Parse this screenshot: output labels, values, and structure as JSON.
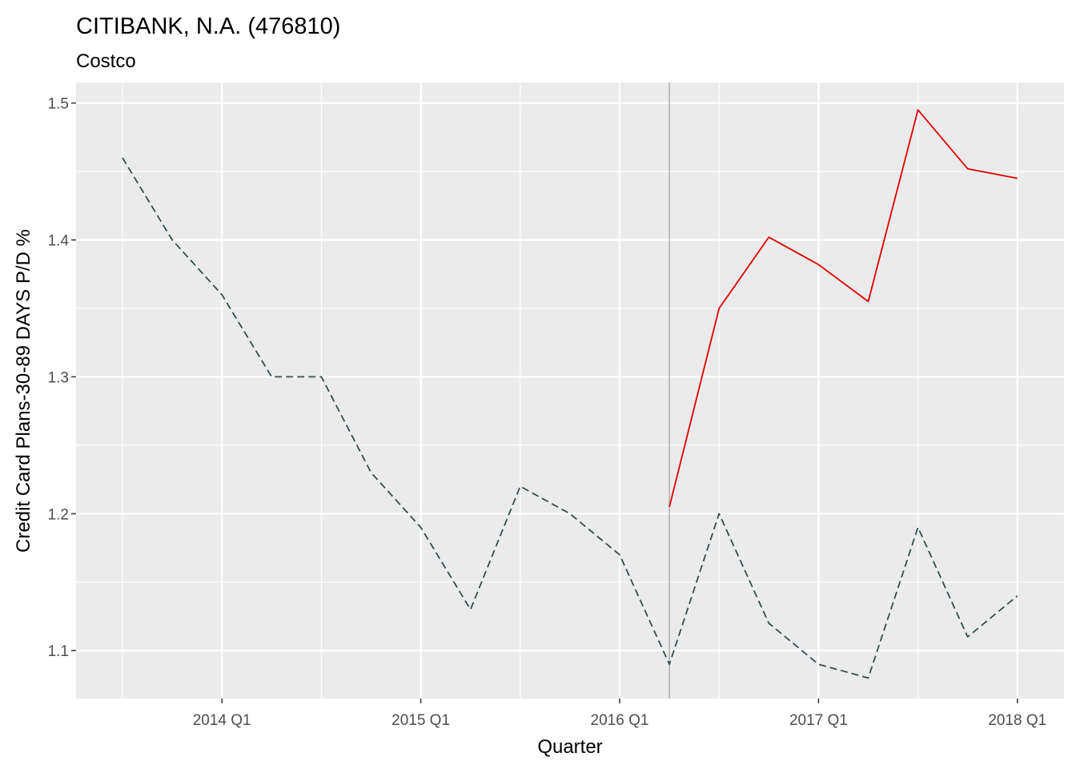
{
  "chart_data": {
    "type": "line",
    "title": "CITIBANK, N.A. (476810)",
    "subtitle": "Costco",
    "xlabel": "Quarter",
    "ylabel": "Credit Card Plans-30-89 DAYS P/D %",
    "x_ticks": [
      "2014 Q1",
      "2015 Q1",
      "2016 Q1",
      "2017 Q1",
      "2018 Q1"
    ],
    "y_ticks": [
      1.1,
      1.2,
      1.3,
      1.4,
      1.5
    ],
    "ylim": [
      1.065,
      1.515
    ],
    "xlim": [
      "2013 Q3",
      "2018 Q1"
    ],
    "grid": true,
    "legend": "none",
    "reference_line_x": "2016 Q2",
    "series": [
      {
        "style": "dashed",
        "color": "#2F4F4F",
        "x": [
          "2013 Q3",
          "2013 Q4",
          "2014 Q1",
          "2014 Q2",
          "2014 Q3",
          "2014 Q4",
          "2015 Q1",
          "2015 Q2",
          "2015 Q3",
          "2015 Q4",
          "2016 Q1",
          "2016 Q2",
          "2016 Q3",
          "2016 Q4",
          "2017 Q1",
          "2017 Q2",
          "2017 Q3",
          "2017 Q4",
          "2018 Q1"
        ],
        "values": [
          1.46,
          1.4,
          1.36,
          1.3,
          1.3,
          1.23,
          1.19,
          1.13,
          1.22,
          1.2,
          1.17,
          1.09,
          1.2,
          1.12,
          1.09,
          1.08,
          1.19,
          1.11,
          1.14
        ]
      },
      {
        "style": "solid",
        "color": "#E00000",
        "x": [
          "2016 Q2",
          "2016 Q3",
          "2016 Q4",
          "2017 Q1",
          "2017 Q2",
          "2017 Q3",
          "2017 Q4",
          "2018 Q1"
        ],
        "values": [
          1.205,
          1.35,
          1.402,
          1.382,
          1.355,
          1.495,
          1.452,
          1.445
        ]
      }
    ],
    "colors": {
      "panel": "#EBEBEB",
      "grid": "#FFFFFF",
      "reference_line": "#B3B3B3"
    }
  }
}
